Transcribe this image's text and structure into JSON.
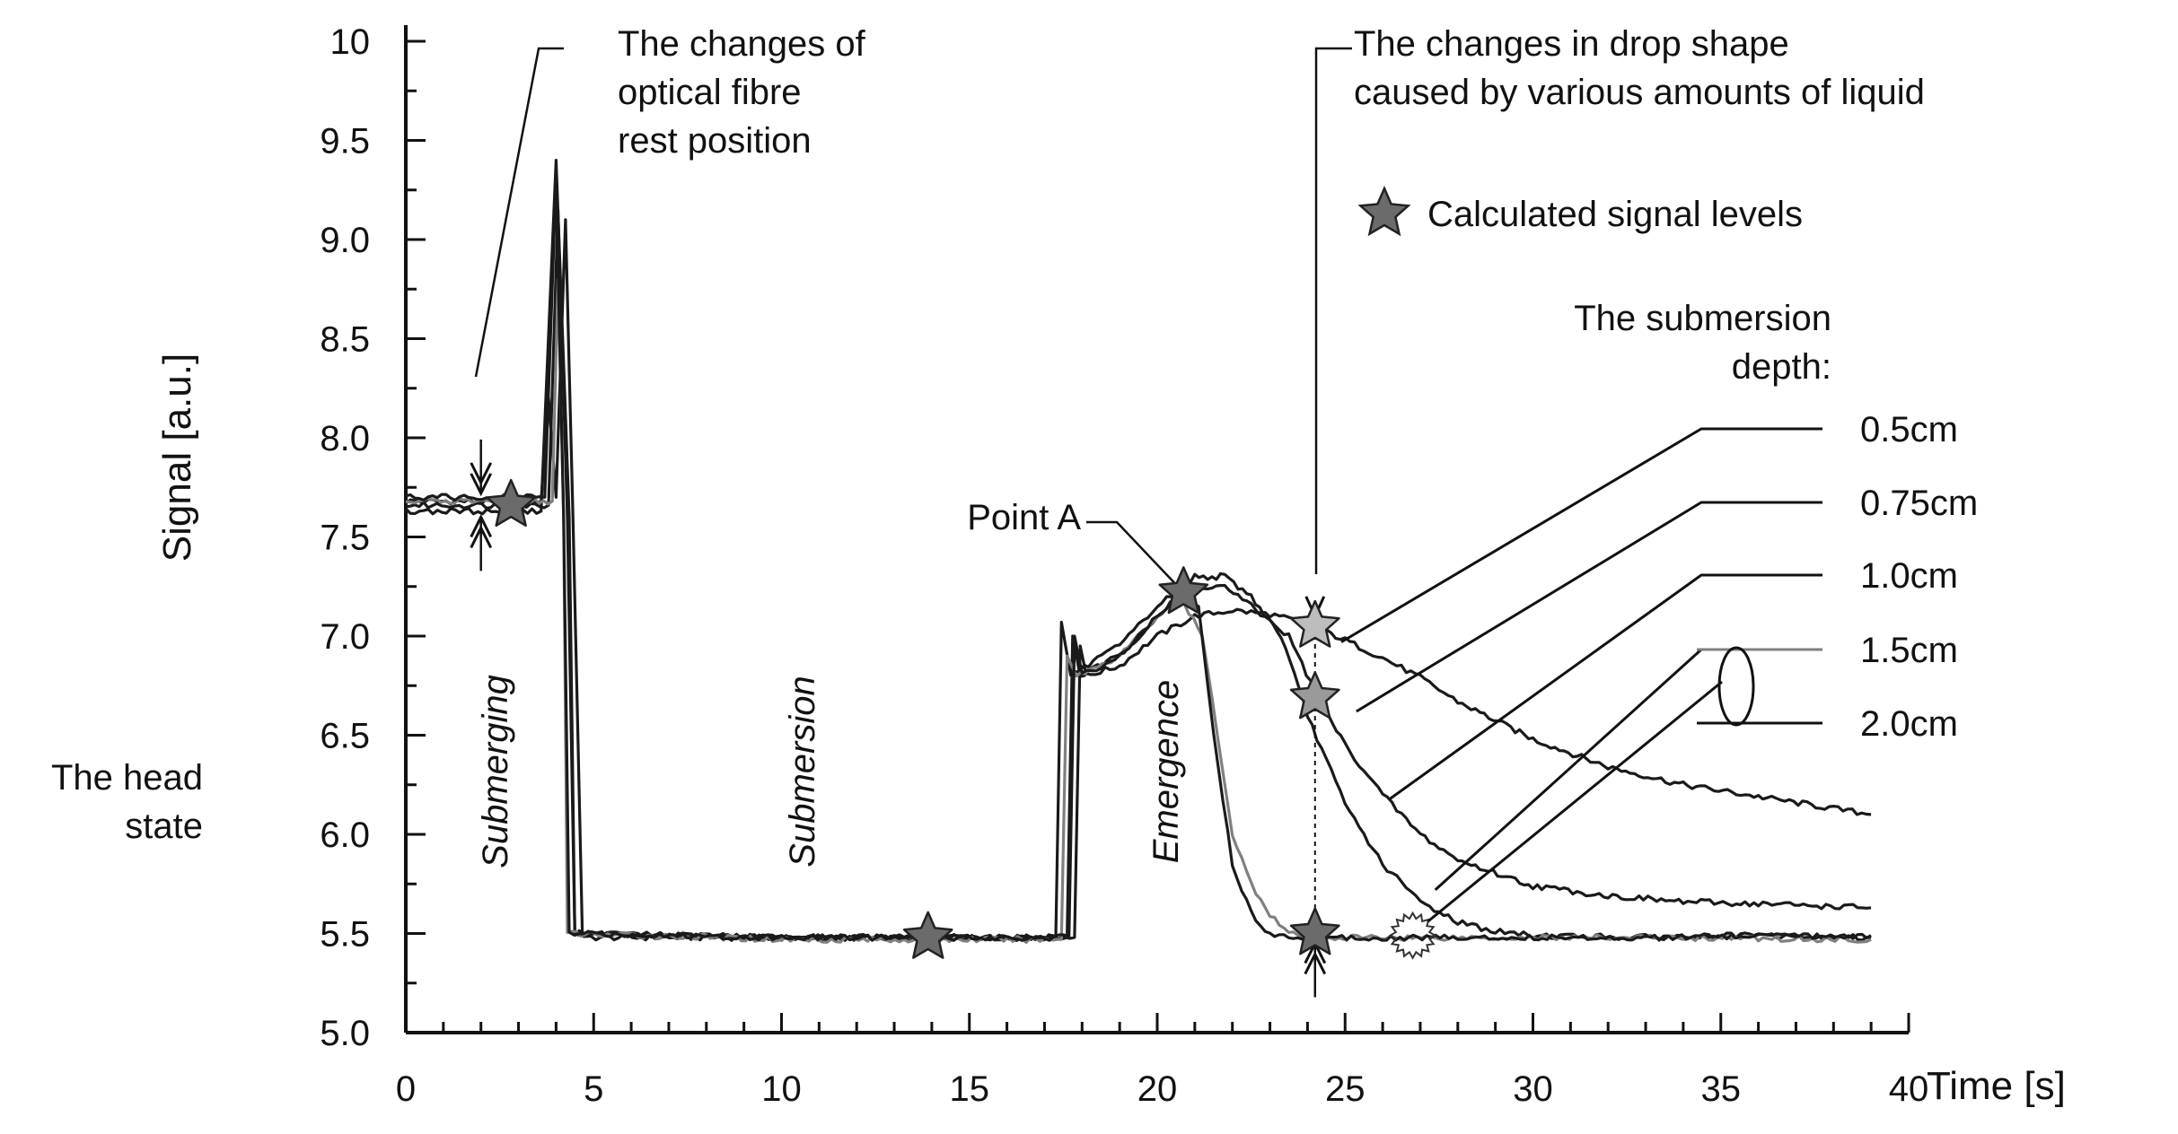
{
  "chart_data": {
    "type": "line",
    "title": "",
    "xlabel": "Time [s]",
    "ylabel": "Signal [a.u.]",
    "xlim": [
      0,
      40
    ],
    "ylim": [
      5.0,
      10.0
    ],
    "x_ticks": [
      0,
      5,
      10,
      15,
      20,
      25,
      30,
      35,
      40
    ],
    "x_tick_labels": [
      "0",
      "5",
      "10",
      "15",
      "20",
      "25",
      "30",
      "35",
      "40"
    ],
    "y_ticks": [
      5.0,
      5.5,
      6.0,
      6.5,
      7.0,
      7.5,
      8.0,
      8.5,
      9.0,
      9.5,
      10
    ],
    "y_tick_labels": [
      "5.0",
      "5.5",
      "6.0",
      "6.5",
      "7.0",
      "7.5",
      "8.0",
      "8.5",
      "9.0",
      "9.5",
      "10"
    ],
    "grid": false,
    "legend_title": [
      "The submersion",
      "depth:"
    ],
    "series": [
      {
        "name": "0.5cm",
        "color": "#1a1a1a",
        "points": [
          [
            0,
            7.68
          ],
          [
            3.6,
            7.68
          ],
          [
            3.8,
            8.2
          ],
          [
            4.0,
            7.7
          ],
          [
            4.25,
            9.1
          ],
          [
            4.45,
            7.6
          ],
          [
            4.7,
            5.48
          ],
          [
            10,
            5.48
          ],
          [
            17,
            5.48
          ],
          [
            17.8,
            5.48
          ],
          [
            17.95,
            6.95
          ],
          [
            18.1,
            6.8
          ],
          [
            19,
            6.85
          ],
          [
            20,
            7.0
          ],
          [
            21,
            7.1
          ],
          [
            22,
            7.13
          ],
          [
            23,
            7.11
          ],
          [
            24,
            7.06
          ],
          [
            25,
            6.98
          ],
          [
            26,
            6.89
          ],
          [
            27,
            6.79
          ],
          [
            28,
            6.67
          ],
          [
            30,
            6.48
          ],
          [
            32,
            6.34
          ],
          [
            34,
            6.25
          ],
          [
            36,
            6.19
          ],
          [
            38,
            6.13
          ],
          [
            39,
            6.1
          ]
        ]
      },
      {
        "name": "0.75cm",
        "color": "#1a1a1a",
        "points": [
          [
            0,
            7.66
          ],
          [
            3.8,
            7.66
          ],
          [
            4.05,
            9.15
          ],
          [
            4.3,
            7.6
          ],
          [
            4.5,
            5.5
          ],
          [
            10,
            5.48
          ],
          [
            17,
            5.48
          ],
          [
            17.6,
            5.48
          ],
          [
            17.75,
            7.0
          ],
          [
            17.95,
            6.8
          ],
          [
            19,
            6.9
          ],
          [
            20,
            7.1
          ],
          [
            21,
            7.25
          ],
          [
            21.8,
            7.25
          ],
          [
            22.5,
            7.15
          ],
          [
            23.5,
            7.0
          ],
          [
            24.2,
            6.72
          ],
          [
            25,
            6.45
          ],
          [
            26,
            6.2
          ],
          [
            27,
            6.0
          ],
          [
            28,
            5.87
          ],
          [
            30,
            5.74
          ],
          [
            32,
            5.69
          ],
          [
            34,
            5.66
          ],
          [
            36,
            5.65
          ],
          [
            39,
            5.63
          ]
        ]
      },
      {
        "name": "1.0cm",
        "color": "#1a1a1a",
        "points": [
          [
            0,
            7.63
          ],
          [
            3.6,
            7.63
          ],
          [
            4.0,
            9.4
          ],
          [
            4.35,
            7.6
          ],
          [
            4.5,
            5.5
          ],
          [
            10,
            5.48
          ],
          [
            17,
            5.48
          ],
          [
            17.3,
            5.48
          ],
          [
            17.45,
            7.07
          ],
          [
            17.7,
            6.8
          ],
          [
            19,
            6.95
          ],
          [
            20,
            7.15
          ],
          [
            21,
            7.3
          ],
          [
            21.8,
            7.3
          ],
          [
            22.5,
            7.2
          ],
          [
            23.3,
            7.0
          ],
          [
            24,
            6.6
          ],
          [
            25,
            6.15
          ],
          [
            26,
            5.85
          ],
          [
            27,
            5.66
          ],
          [
            28,
            5.56
          ],
          [
            29,
            5.51
          ],
          [
            30,
            5.49
          ],
          [
            33,
            5.48
          ],
          [
            36,
            5.49
          ],
          [
            39,
            5.48
          ]
        ]
      },
      {
        "name": "1.5cm",
        "color": "#808080",
        "points": [
          [
            0,
            7.68
          ],
          [
            3.9,
            7.68
          ],
          [
            4.05,
            8.8
          ],
          [
            4.2,
            7.6
          ],
          [
            4.3,
            5.5
          ],
          [
            10,
            5.47
          ],
          [
            17,
            5.47
          ],
          [
            17.45,
            5.47
          ],
          [
            17.6,
            6.9
          ],
          [
            17.85,
            6.8
          ],
          [
            19,
            6.9
          ],
          [
            20,
            7.1
          ],
          [
            20.6,
            7.2
          ],
          [
            21.2,
            7.0
          ],
          [
            21.6,
            6.5
          ],
          [
            22,
            6.0
          ],
          [
            22.5,
            5.75
          ],
          [
            23,
            5.6
          ],
          [
            23.5,
            5.5
          ],
          [
            24,
            5.48
          ],
          [
            28,
            5.48
          ],
          [
            33,
            5.48
          ],
          [
            39,
            5.47
          ]
        ]
      },
      {
        "name": "2.0cm",
        "color": "#1a1a1a",
        "points": [
          [
            0,
            7.7
          ],
          [
            3.7,
            7.7
          ],
          [
            4.0,
            9.3
          ],
          [
            4.2,
            7.6
          ],
          [
            4.35,
            5.5
          ],
          [
            10,
            5.48
          ],
          [
            17,
            5.48
          ],
          [
            17.65,
            5.48
          ],
          [
            17.8,
            7.0
          ],
          [
            18.0,
            6.8
          ],
          [
            19,
            6.9
          ],
          [
            20,
            7.1
          ],
          [
            20.7,
            7.22
          ],
          [
            21.1,
            7.15
          ],
          [
            21.5,
            6.5
          ],
          [
            22,
            5.85
          ],
          [
            22.5,
            5.6
          ],
          [
            23,
            5.5
          ],
          [
            23.5,
            5.48
          ],
          [
            28,
            5.48
          ],
          [
            33,
            5.48
          ],
          [
            39,
            5.49
          ]
        ]
      }
    ],
    "markers": [
      {
        "label": "star",
        "x": 2.8,
        "y": 7.66,
        "fill": "#6b6b6b"
      },
      {
        "label": "star",
        "x": 13.9,
        "y": 5.48,
        "fill": "#6b6b6b"
      },
      {
        "label": "star",
        "x": 20.7,
        "y": 7.22,
        "fill": "#6b6b6b"
      },
      {
        "label": "star",
        "x": 24.2,
        "y": 7.05,
        "fill": "#bdbdbd"
      },
      {
        "label": "star",
        "x": 24.2,
        "y": 6.69,
        "fill": "#9a9a9a"
      },
      {
        "label": "star",
        "x": 24.2,
        "y": 5.5,
        "fill": "#6b6b6b"
      }
    ],
    "annotations": {
      "fibre_rest": [
        "The changes of",
        "optical fibre",
        "rest position"
      ],
      "drop_shape": [
        "The changes in drop shape",
        "caused by various amounts of liquid"
      ],
      "calculated": "Calculated signal levels",
      "point_a": "Point A",
      "head_state": [
        "The head",
        "state"
      ],
      "phases": [
        "Submerging",
        "Submersion",
        "Emergence"
      ]
    }
  }
}
